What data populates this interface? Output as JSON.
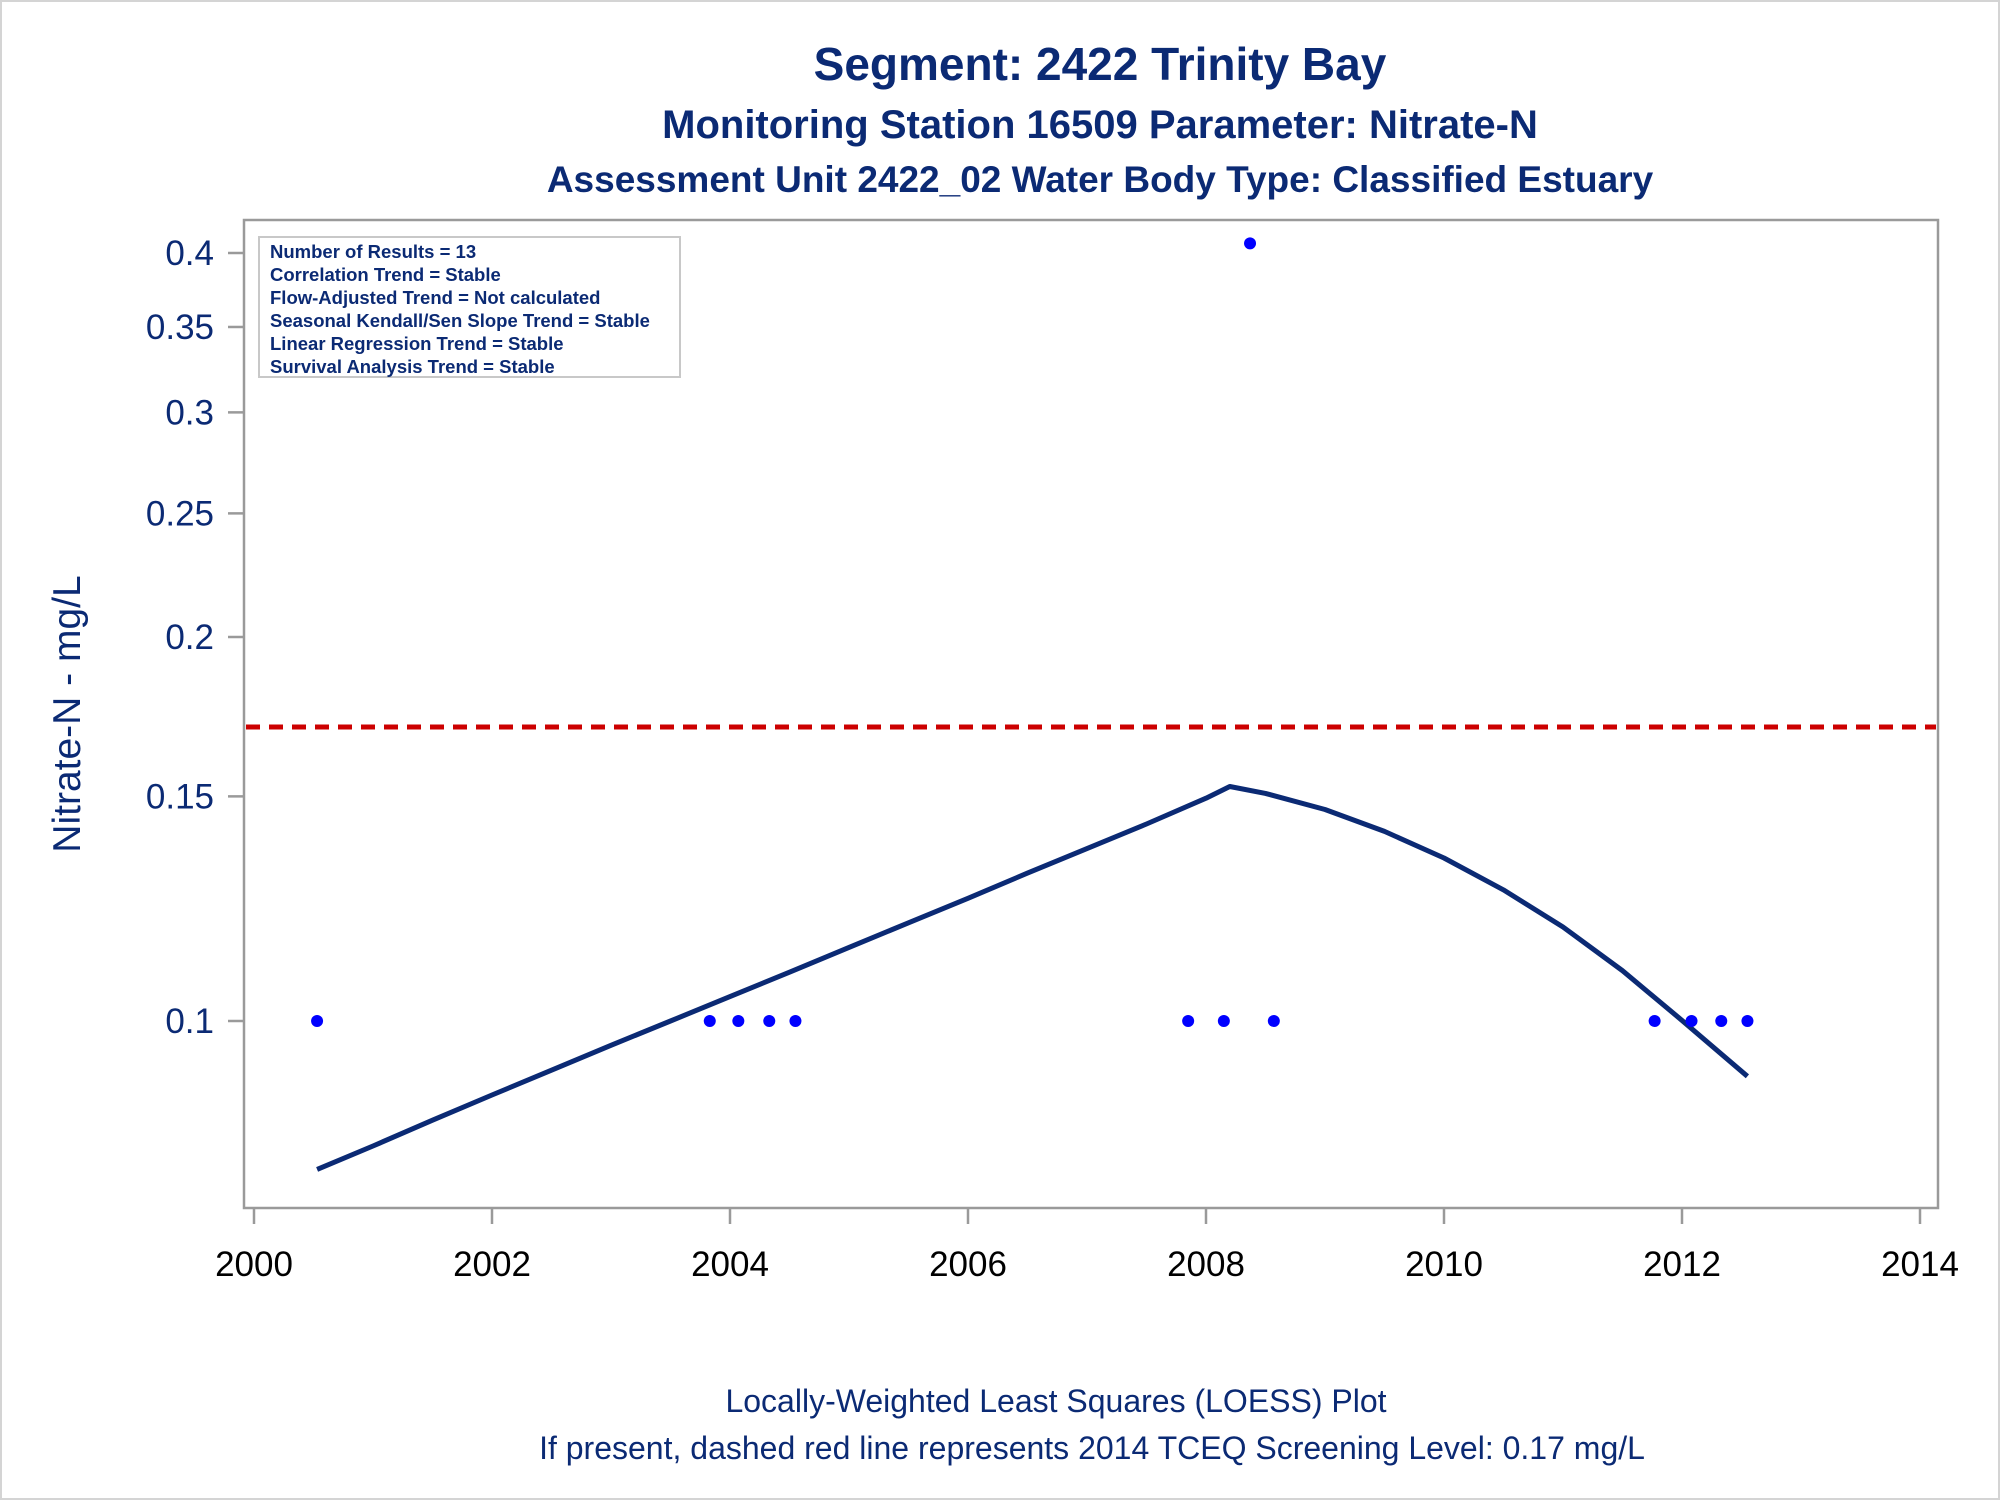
{
  "chart_data": {
    "type": "scatter",
    "title": "Segment: 2422  Trinity Bay",
    "subtitle": "Monitoring Station 16509 Parameter: Nitrate-N",
    "subtitle2": "Assessment Unit 2422_02   Water Body Type: Classified Estuary",
    "ylabel": "Nitrate-N - mg/L",
    "xlabel": "",
    "yscale": "log",
    "xlim": [
      2000,
      2014
    ],
    "ylim": [
      0.074,
      0.42
    ],
    "xticks": [
      2000,
      2002,
      2004,
      2006,
      2008,
      2010,
      2012,
      2014
    ],
    "xtick_labels": [
      "2000",
      "2002",
      "2004",
      "2006",
      "2008",
      "2010",
      "2012",
      "2014"
    ],
    "yticks": [
      0.1,
      0.15,
      0.2,
      0.25,
      0.3,
      0.35,
      0.4
    ],
    "ytick_labels": [
      "0.1",
      "0.15",
      "0.2",
      "0.25",
      "0.3",
      "0.35",
      "0.4"
    ],
    "grid": false,
    "series": [
      {
        "kind": "points",
        "color": "#0000ff",
        "x": [
          2000.53,
          2003.83,
          2004.07,
          2004.33,
          2004.55,
          2007.85,
          2008.15,
          2008.37,
          2008.57,
          2011.77,
          2012.08,
          2012.33,
          2012.55
        ],
        "y": [
          0.1,
          0.1,
          0.1,
          0.1,
          0.1,
          0.1,
          0.1,
          0.407,
          0.1,
          0.1,
          0.1,
          0.1,
          0.1
        ]
      },
      {
        "kind": "loess",
        "color": "#0b2a74",
        "x": [
          2000.53,
          2001.0,
          2001.5,
          2002.0,
          2002.5,
          2003.0,
          2003.5,
          2004.0,
          2004.5,
          2005.0,
          2005.5,
          2006.0,
          2006.5,
          2007.0,
          2007.5,
          2008.0,
          2008.2,
          2008.5,
          2009.0,
          2009.5,
          2010.0,
          2010.5,
          2011.0,
          2011.5,
          2012.0,
          2012.55
        ],
        "y": [
          0.0765,
          0.0798,
          0.0836,
          0.0875,
          0.0915,
          0.0957,
          0.1,
          0.1045,
          0.1092,
          0.1142,
          0.1194,
          0.1248,
          0.1306,
          0.1365,
          0.1427,
          0.1495,
          0.1527,
          0.1508,
          0.1465,
          0.1408,
          0.1342,
          0.1267,
          0.1185,
          0.1095,
          0.1001,
          0.0905
        ]
      }
    ],
    "reference_line": {
      "y": 0.17,
      "color": "#cc0000",
      "style": "dashed"
    },
    "info_box": [
      "Number of Results = 13",
      "Correlation Trend = Stable",
      "Flow-Adjusted Trend = Not calculated",
      "Seasonal Kendall/Sen Slope Trend = Stable",
      "Linear Regression Trend = Stable",
      "Survival Analysis Trend = Stable"
    ],
    "footnotes": [
      "Locally-Weighted Least Squares (LOESS) Plot",
      "If present, dashed red line represents 2014 TCEQ Screening Level: 0.17 mg/L"
    ]
  }
}
